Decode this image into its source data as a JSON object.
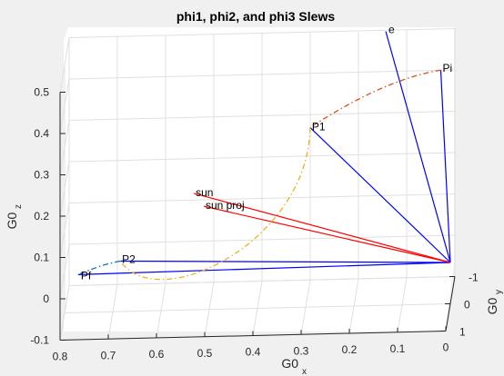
{
  "chart_data": {
    "type": "line3d",
    "title": "phi1, phi2, and phi3 Slews",
    "xlabel": {
      "base": "G0",
      "sub": "x"
    },
    "ylabel": {
      "base": "G0",
      "sub": "y"
    },
    "zlabel": {
      "base": "G0",
      "sub": "z"
    },
    "xlim": [
      0,
      0.8
    ],
    "ylim": [
      -1,
      1
    ],
    "zlim": [
      -0.1,
      0.5
    ],
    "x_ticks": [
      "0.8",
      "0.7",
      "0.6",
      "0.5",
      "0.4",
      "0.3",
      "0.2",
      "0.1",
      "0"
    ],
    "y_ticks": [
      "-1",
      "0",
      "1"
    ],
    "z_ticks": [
      "-0.1",
      "0",
      "0.1",
      "0.2",
      "0.3",
      "0.4",
      "0.5"
    ],
    "grid": true,
    "colors": {
      "vector": "#0000ff",
      "sun": "#ff0000",
      "phi1": "#d95319",
      "phi2": "#edb120",
      "phi3": "#0072bd"
    },
    "points": [
      {
        "label": "e",
        "x": 0.14,
        "y": -0.65,
        "z": 0.52
      },
      {
        "label": "Pi",
        "x": 0.025,
        "y": -0.55,
        "z": 0.43
      },
      {
        "label": "P1",
        "x": 0.295,
        "y": -0.45,
        "z": 0.305
      },
      {
        "label": "sun",
        "x": 0.53,
        "y": 0.2,
        "z": 0.195
      },
      {
        "label": "sun proj",
        "x": 0.51,
        "y": 0.15,
        "z": 0.16
      },
      {
        "label": "P2",
        "x": 0.68,
        "y": 0.5,
        "z": 0.055
      },
      {
        "label": "Pf",
        "x": 0.77,
        "y": 0.2,
        "z": 0.005
      }
    ],
    "origin": {
      "x": 0,
      "y": 0,
      "z": 0
    }
  }
}
